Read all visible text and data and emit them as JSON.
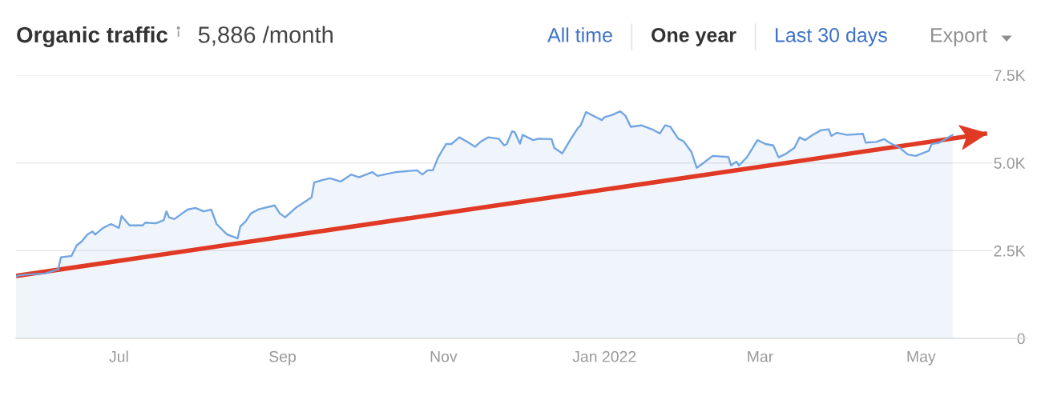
{
  "chart_data": {
    "type": "area",
    "title": "Organic traffic",
    "subtitle": "5,886 /month",
    "annotations": [
      "All time",
      "One year",
      "Last 30 days",
      "Export"
    ],
    "series": [
      {
        "color": "#72a5e2",
        "x": [
          "2021-05-23",
          "2021-05-27",
          "2021-06-03",
          "2021-06-08",
          "2021-06-09",
          "2021-06-13",
          "2021-06-15",
          "2021-06-17",
          "2021-06-19",
          "2021-06-21",
          "2021-06-22",
          "2021-06-25",
          "2021-06-28",
          "2021-07-01",
          "2021-07-02",
          "2021-07-05",
          "2021-07-10",
          "2021-07-11",
          "2021-07-15",
          "2021-07-18",
          "2021-07-19",
          "2021-07-20",
          "2021-07-22",
          "2021-07-27",
          "2021-07-30",
          "2021-08-02",
          "2021-08-05",
          "2021-08-07",
          "2021-08-11",
          "2021-08-15",
          "2021-08-16",
          "2021-08-18",
          "2021-08-20",
          "2021-08-23",
          "2021-08-29",
          "2021-08-31",
          "2021-09-02",
          "2021-09-06",
          "2021-09-09",
          "2021-09-12",
          "2021-09-13",
          "2021-09-16",
          "2021-09-19",
          "2021-09-23",
          "2021-09-27",
          "2021-09-30",
          "2021-10-05",
          "2021-10-07",
          "2021-10-14",
          "2021-10-22",
          "2021-10-24",
          "2021-10-26",
          "2021-10-28",
          "2021-10-30",
          "2021-11-02",
          "2021-11-04",
          "2021-11-07",
          "2021-11-10",
          "2021-11-13",
          "2021-11-15",
          "2021-11-18",
          "2021-11-22",
          "2021-11-24",
          "2021-11-25",
          "2021-11-27",
          "2021-11-28",
          "2021-11-30",
          "2021-12-01",
          "2021-12-05",
          "2021-12-07",
          "2021-12-12",
          "2021-12-13",
          "2021-12-16",
          "2021-12-19",
          "2021-12-22",
          "2021-12-23",
          "2021-12-25",
          "2021-12-31",
          "2022-01-01",
          "2022-01-04",
          "2022-01-07",
          "2022-01-09",
          "2022-01-11",
          "2022-01-15",
          "2022-01-19",
          "2022-01-22",
          "2022-01-24",
          "2022-01-26",
          "2022-01-29",
          "2022-01-31",
          "2022-02-03",
          "2022-02-05",
          "2022-02-07",
          "2022-02-11",
          "2022-02-17",
          "2022-02-18",
          "2022-02-20",
          "2022-02-21",
          "2022-02-24",
          "2022-02-28",
          "2022-03-03",
          "2022-03-06",
          "2022-03-08",
          "2022-03-11",
          "2022-03-14",
          "2022-03-16",
          "2022-03-18",
          "2022-03-21",
          "2022-03-24",
          "2022-03-27",
          "2022-03-28",
          "2022-03-30",
          "2022-04-03",
          "2022-04-09",
          "2022-04-10",
          "2022-04-14",
          "2022-04-17",
          "2022-04-19",
          "2022-04-23",
          "2022-04-26",
          "2022-04-29",
          "2022-05-04",
          "2022-05-05",
          "2022-05-08",
          "2022-05-13"
        ],
        "values": [
          1780,
          1820,
          1850,
          1970,
          2310,
          2350,
          2650,
          2770,
          2960,
          3050,
          2960,
          3150,
          3260,
          3150,
          3490,
          3220,
          3220,
          3300,
          3280,
          3370,
          3620,
          3450,
          3400,
          3670,
          3720,
          3620,
          3670,
          3260,
          2960,
          2850,
          3190,
          3330,
          3560,
          3680,
          3790,
          3560,
          3450,
          3720,
          3870,
          4020,
          4440,
          4510,
          4560,
          4470,
          4670,
          4590,
          4740,
          4630,
          4740,
          4790,
          4670,
          4790,
          4790,
          5160,
          5540,
          5540,
          5730,
          5600,
          5460,
          5600,
          5730,
          5690,
          5500,
          5540,
          5900,
          5880,
          5550,
          5800,
          5650,
          5690,
          5680,
          5430,
          5270,
          5650,
          6000,
          6070,
          6450,
          6220,
          6300,
          6370,
          6470,
          6340,
          6030,
          6070,
          5960,
          5840,
          6070,
          6030,
          5690,
          5620,
          5310,
          4860,
          4970,
          5200,
          5170,
          4930,
          5040,
          4930,
          5160,
          5650,
          5540,
          5500,
          5160,
          5270,
          5430,
          5730,
          5650,
          5800,
          5930,
          5960,
          5770,
          5860,
          5800,
          5830,
          5580,
          5600,
          5680,
          5580,
          5430,
          5240,
          5200,
          5350,
          5540,
          5580,
          5800
        ]
      },
      {
        "type": "line",
        "color": "#e03a25",
        "x": [
          "2021-05-23",
          "2022-05-26"
        ],
        "values": [
          1780,
          5840
        ]
      }
    ],
    "xlim": [
      "2021-05-23",
      "2022-06-10"
    ],
    "xticks": [
      {
        "value": "2021-07-01",
        "label": "Jul"
      },
      {
        "value": "2021-09-01",
        "label": "Sep"
      },
      {
        "value": "2021-11-01",
        "label": "Nov"
      },
      {
        "value": "2022-01-01",
        "label": "Jan 2022"
      },
      {
        "value": "2022-03-01",
        "label": "Mar"
      },
      {
        "value": "2022-05-01",
        "label": "May"
      }
    ],
    "ylim": [
      0,
      7500
    ],
    "yticks": [
      0,
      {
        "value": 2500,
        "label": "2.5K"
      },
      {
        "value": 5000,
        "label": "5.0K"
      },
      {
        "value": 7500,
        "label": "7.5K"
      }
    ],
    "grid": "y"
  }
}
